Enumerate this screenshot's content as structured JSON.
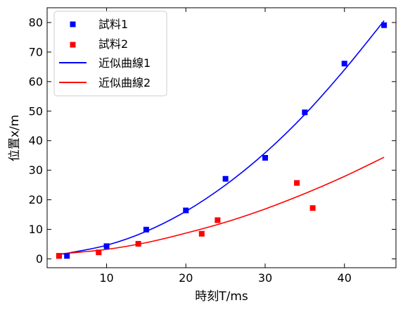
{
  "chart_data": {
    "type": "scatter",
    "xlabel": "時刻T/ms",
    "ylabel": "位置x/m",
    "xlim": [
      2.5,
      46.5
    ],
    "ylim": [
      -3,
      85
    ],
    "xticks": [
      10,
      20,
      30,
      40
    ],
    "yticks": [
      0,
      10,
      20,
      30,
      40,
      50,
      60,
      70,
      80
    ],
    "legend_position": "top-left",
    "series": [
      {
        "name": "試料1",
        "kind": "points",
        "color": "#0000ff",
        "x": [
          4,
          5,
          10,
          15,
          20,
          25,
          30,
          35,
          40,
          45
        ],
        "y": [
          1.0,
          1.0,
          4.3,
          9.9,
          16.4,
          27.1,
          34.2,
          49.6,
          66.1,
          79.1
        ]
      },
      {
        "name": "試料2",
        "kind": "points",
        "color": "#ff0000",
        "x": [
          4,
          9,
          14,
          22,
          24,
          34,
          36
        ],
        "y": [
          1.0,
          2.2,
          5.1,
          8.5,
          13.1,
          25.7,
          17.2
        ]
      },
      {
        "name": "近似曲線1",
        "kind": "curve",
        "color": "#0000ff",
        "x": [
          4,
          5,
          10,
          15,
          20,
          25,
          30,
          35,
          40,
          45
        ],
        "y": [
          1.5,
          1.9,
          4.6,
          9.3,
          16.1,
          25.0,
          35.9,
          48.9,
          64.0,
          80.6
        ]
      },
      {
        "name": "近似曲線2",
        "kind": "curve",
        "color": "#ff0000",
        "x": [
          4,
          5,
          10,
          15,
          20,
          25,
          30,
          35,
          40,
          45
        ],
        "y": [
          1.7,
          1.9,
          3.2,
          5.5,
          8.7,
          12.4,
          16.9,
          22.1,
          27.9,
          34.4
        ]
      }
    ]
  }
}
